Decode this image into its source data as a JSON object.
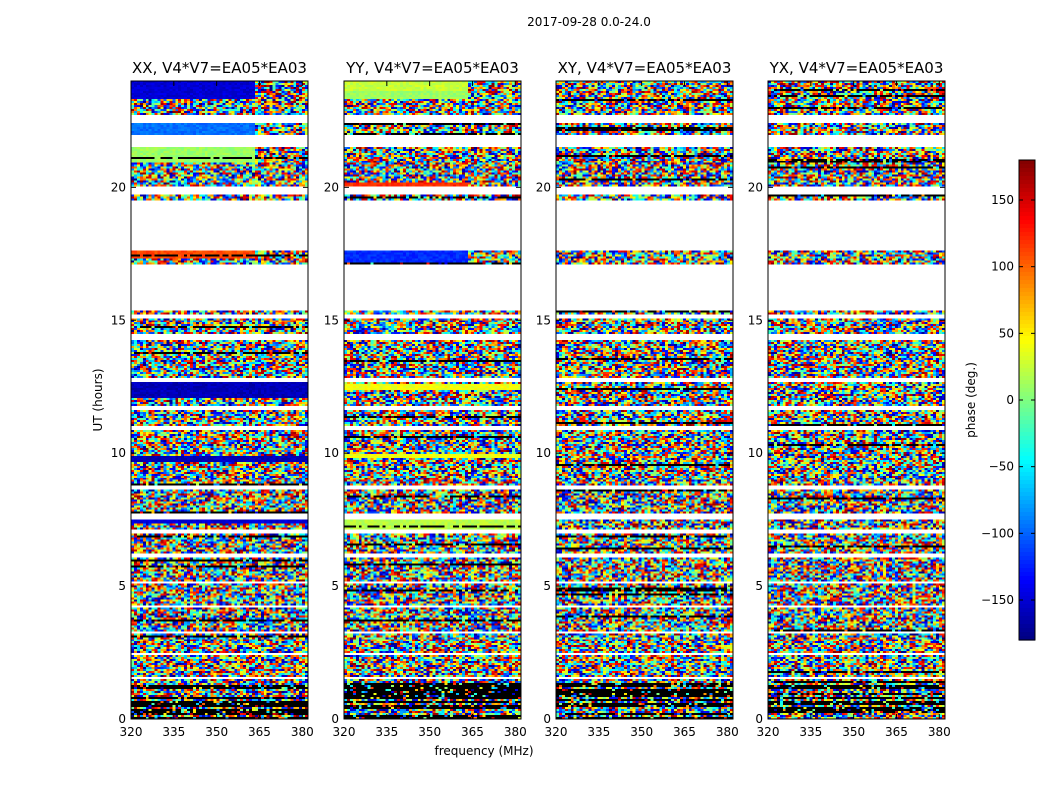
{
  "chart_data": {
    "type": "heatmap",
    "suptitle": "2017-09-28 0.0-24.0",
    "xlabel": "frequency (MHz)",
    "ylabel": "UT (hours)",
    "xlim": [
      320,
      382
    ],
    "ylim": [
      0,
      24
    ],
    "xticks": [
      320,
      335,
      350,
      365,
      380
    ],
    "yticks": [
      0,
      5,
      10,
      15,
      20
    ],
    "panels": [
      {
        "title": "XX, V4*V7=EA05*EA03",
        "pol": "XX",
        "coherent_bands": [
          {
            "t0": 23.3,
            "t1": 24.0,
            "phase": -150,
            "f1": 363
          },
          {
            "t0": 22.0,
            "t1": 22.4,
            "phase": -95,
            "f1": 363
          },
          {
            "t0": 20.9,
            "t1": 21.5,
            "phase": 10,
            "f1": 363
          },
          {
            "t0": 17.3,
            "t1": 17.6,
            "phase": 110,
            "f1": 363
          },
          {
            "t0": 12.1,
            "t1": 12.7,
            "phase": -160,
            "f1": 382
          },
          {
            "t0": 9.7,
            "t1": 9.9,
            "phase": -160,
            "f1": 382
          },
          {
            "t0": 7.35,
            "t1": 7.5,
            "phase": -150,
            "f1": 382
          }
        ]
      },
      {
        "title": "YY, V4*V7=EA05*EA03",
        "pol": "YY",
        "coherent_bands": [
          {
            "t0": 23.6,
            "t1": 24.0,
            "phase": 25,
            "f1": 363
          },
          {
            "t0": 23.3,
            "t1": 23.6,
            "phase": 10,
            "f1": 363
          },
          {
            "t0": 20.0,
            "t1": 20.2,
            "phase": 120,
            "f1": 363
          },
          {
            "t0": 17.2,
            "t1": 17.6,
            "phase": -120,
            "f1": 363
          },
          {
            "t0": 12.4,
            "t1": 12.6,
            "phase": 40,
            "f1": 382
          },
          {
            "t0": 9.8,
            "t1": 9.95,
            "phase": 40,
            "f1": 382
          },
          {
            "t0": 7.1,
            "t1": 7.5,
            "phase": 20,
            "f1": 382
          }
        ]
      },
      {
        "title": "XY, V4*V7=EA05*EA03",
        "pol": "XY",
        "coherent_bands": []
      },
      {
        "title": "YX, V4*V7=EA05*EA03",
        "pol": "YX",
        "coherent_bands": []
      }
    ],
    "gaps": [
      [
        21.5,
        22.0
      ],
      [
        22.4,
        22.7
      ],
      [
        19.7,
        20.0
      ],
      [
        17.6,
        19.5
      ],
      [
        15.4,
        17.1
      ],
      [
        15.05,
        15.2
      ],
      [
        14.25,
        14.5
      ],
      [
        12.7,
        12.85
      ],
      [
        11.65,
        11.8
      ],
      [
        10.9,
        11.05
      ],
      [
        8.6,
        8.8
      ],
      [
        7.5,
        7.7
      ],
      [
        7.0,
        7.1
      ],
      [
        6.1,
        6.2
      ],
      [
        5.1,
        5.2
      ],
      [
        4.2,
        4.3
      ],
      [
        3.2,
        3.3
      ],
      [
        2.4,
        2.5
      ],
      [
        1.5,
        1.55
      ]
    ],
    "colorbar": {
      "label": "phase (deg.)",
      "range": [
        -180,
        180
      ],
      "ticks": [
        -150,
        -100,
        -50,
        0,
        50,
        100,
        150
      ],
      "tick_labels": [
        "−150",
        "−100",
        "−50",
        "0",
        "50",
        "100",
        "150"
      ],
      "colormap": "jet"
    }
  }
}
